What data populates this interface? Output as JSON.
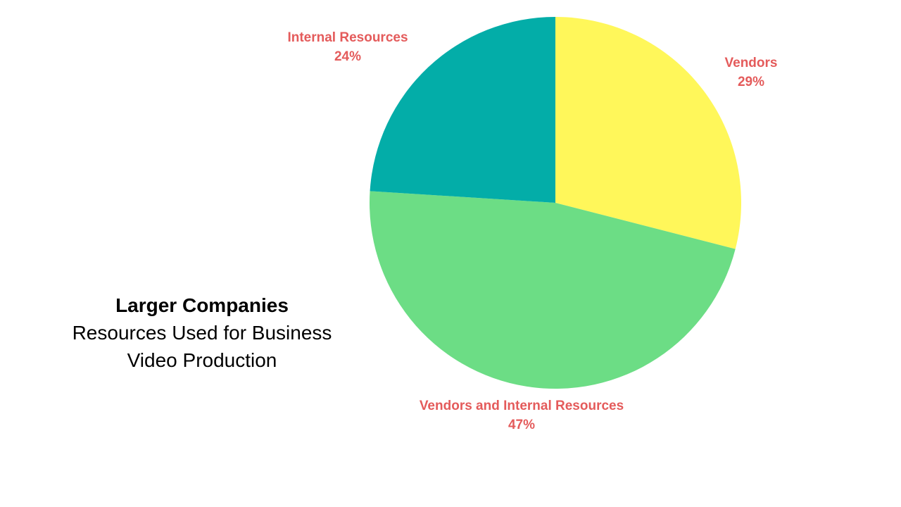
{
  "chart_data": {
    "type": "pie",
    "title": "Larger Companies",
    "subtitle": "Resources Used for Business Video Production",
    "slices": [
      {
        "label": "Vendors",
        "value": 29,
        "value_label": "29%",
        "color": "#fff75a"
      },
      {
        "label": "Vendors and Internal Resources",
        "value": 47,
        "value_label": "47%",
        "color": "#6cdd85"
      },
      {
        "label": "Internal Resources",
        "value": 24,
        "value_label": "24%",
        "color": "#03ada8"
      }
    ],
    "start_angle": "12 o'clock",
    "direction": "clockwise",
    "legend": "none",
    "label_color": "#e45b5b"
  }
}
